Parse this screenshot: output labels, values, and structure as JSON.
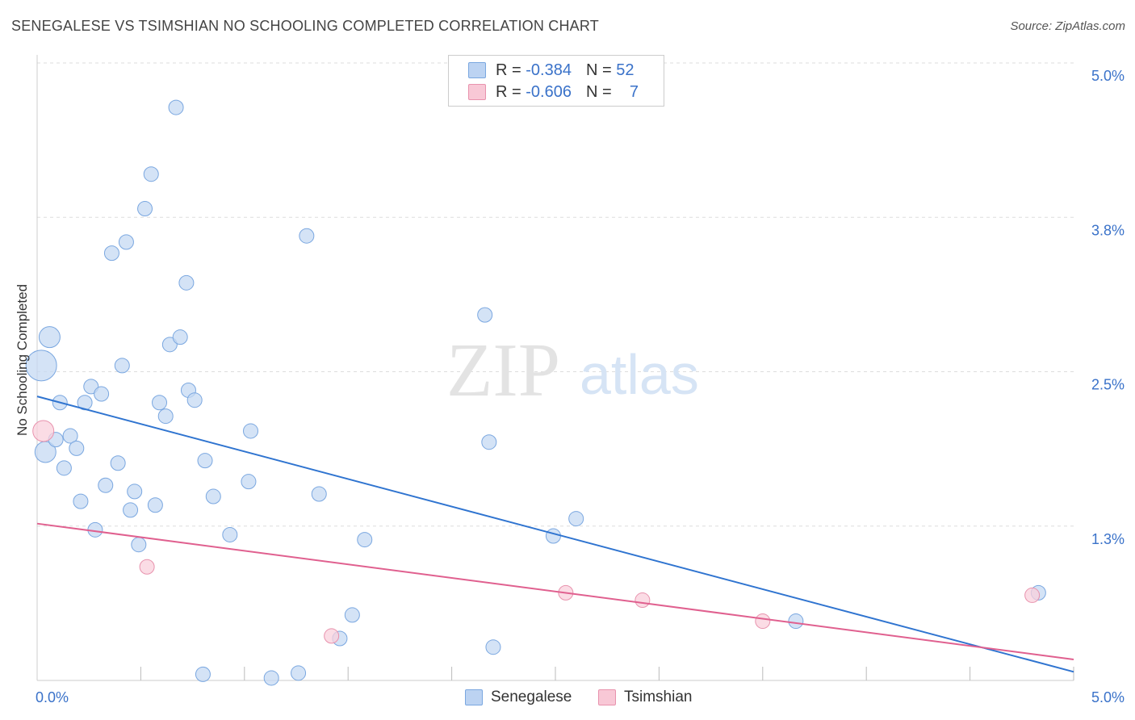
{
  "title": "SENEGALESE VS TSIMSHIAN NO SCHOOLING COMPLETED CORRELATION CHART",
  "source": "Source: ZipAtlas.com",
  "watermark": {
    "zip": "ZIP",
    "atlas": "atlas"
  },
  "stats": {
    "senegalese": {
      "r_label": "R =",
      "r_value": "-0.384",
      "n_label": "N =",
      "n_value": "52"
    },
    "tsimshian": {
      "r_label": "R =",
      "r_value": "-0.606",
      "n_label": "N =",
      "n_value": "7"
    }
  },
  "legend": {
    "senegalese": "Senegalese",
    "tsimshian": "Tsimshian"
  },
  "colors": {
    "blue_fill": "#c5daf3",
    "blue_stroke": "#7aa7e0",
    "blue_line": "#2f74d0",
    "pink_fill": "#f9d0dc",
    "pink_stroke": "#e892ad",
    "pink_line": "#e0608f",
    "tick_label": "#3a72c9",
    "grid": "#dddddd"
  },
  "chart_data": {
    "type": "scatter",
    "title": "SENEGALESE VS TSIMSHIAN NO SCHOOLING COMPLETED CORRELATION CHART",
    "xlabel": "",
    "ylabel": "No Schooling Completed",
    "xlim": [
      0.0,
      5.0
    ],
    "ylim": [
      0.0,
      5.0
    ],
    "x_tick_labels": [
      {
        "value": 0.0,
        "label": "0.0%"
      },
      {
        "value": 5.0,
        "label": "5.0%"
      }
    ],
    "y_ticks": [
      {
        "value": 1.25,
        "label": "1.3%"
      },
      {
        "value": 2.5,
        "label": "2.5%"
      },
      {
        "value": 3.75,
        "label": "3.8%"
      },
      {
        "value": 5.0,
        "label": "5.0%"
      }
    ],
    "series": [
      {
        "name": "Senegalese",
        "points": [
          {
            "x": 0.02,
            "y": 2.55,
            "s": 3
          },
          {
            "x": 0.06,
            "y": 2.78,
            "s": 2
          },
          {
            "x": 0.04,
            "y": 1.85,
            "s": 2
          },
          {
            "x": 0.09,
            "y": 1.95,
            "s": 1
          },
          {
            "x": 0.11,
            "y": 2.25,
            "s": 1
          },
          {
            "x": 0.13,
            "y": 1.72,
            "s": 1
          },
          {
            "x": 0.16,
            "y": 1.98,
            "s": 1
          },
          {
            "x": 0.19,
            "y": 1.88,
            "s": 1
          },
          {
            "x": 0.21,
            "y": 1.45,
            "s": 1
          },
          {
            "x": 0.23,
            "y": 2.25,
            "s": 1
          },
          {
            "x": 0.26,
            "y": 2.38,
            "s": 1
          },
          {
            "x": 0.28,
            "y": 1.22,
            "s": 1
          },
          {
            "x": 0.31,
            "y": 2.32,
            "s": 1
          },
          {
            "x": 0.33,
            "y": 1.58,
            "s": 1
          },
          {
            "x": 0.36,
            "y": 3.46,
            "s": 1
          },
          {
            "x": 0.39,
            "y": 1.76,
            "s": 1
          },
          {
            "x": 0.41,
            "y": 2.55,
            "s": 1
          },
          {
            "x": 0.43,
            "y": 3.55,
            "s": 1
          },
          {
            "x": 0.45,
            "y": 1.38,
            "s": 1
          },
          {
            "x": 0.47,
            "y": 1.53,
            "s": 1
          },
          {
            "x": 0.49,
            "y": 1.1,
            "s": 1
          },
          {
            "x": 0.52,
            "y": 3.82,
            "s": 1
          },
          {
            "x": 0.55,
            "y": 4.1,
            "s": 1
          },
          {
            "x": 0.57,
            "y": 1.42,
            "s": 1
          },
          {
            "x": 0.59,
            "y": 2.25,
            "s": 1
          },
          {
            "x": 0.62,
            "y": 2.14,
            "s": 1
          },
          {
            "x": 0.64,
            "y": 2.72,
            "s": 1
          },
          {
            "x": 0.67,
            "y": 4.64,
            "s": 1
          },
          {
            "x": 0.69,
            "y": 2.78,
            "s": 1
          },
          {
            "x": 0.72,
            "y": 3.22,
            "s": 1
          },
          {
            "x": 0.73,
            "y": 2.35,
            "s": 1
          },
          {
            "x": 0.76,
            "y": 2.27,
            "s": 1
          },
          {
            "x": 0.8,
            "y": 0.05,
            "s": 1
          },
          {
            "x": 0.81,
            "y": 1.78,
            "s": 1
          },
          {
            "x": 0.85,
            "y": 1.49,
            "s": 1
          },
          {
            "x": 0.93,
            "y": 1.18,
            "s": 1
          },
          {
            "x": 1.02,
            "y": 1.61,
            "s": 1
          },
          {
            "x": 1.03,
            "y": 2.02,
            "s": 1
          },
          {
            "x": 1.13,
            "y": 0.02,
            "s": 1
          },
          {
            "x": 1.26,
            "y": 0.06,
            "s": 1
          },
          {
            "x": 1.3,
            "y": 3.6,
            "s": 1
          },
          {
            "x": 1.36,
            "y": 1.51,
            "s": 1
          },
          {
            "x": 1.46,
            "y": 0.34,
            "s": 1
          },
          {
            "x": 1.52,
            "y": 0.53,
            "s": 1
          },
          {
            "x": 1.58,
            "y": 1.14,
            "s": 1
          },
          {
            "x": 2.16,
            "y": 2.96,
            "s": 1
          },
          {
            "x": 2.18,
            "y": 1.93,
            "s": 1
          },
          {
            "x": 2.2,
            "y": 0.27,
            "s": 1
          },
          {
            "x": 2.49,
            "y": 1.17,
            "s": 1
          },
          {
            "x": 2.6,
            "y": 1.31,
            "s": 1
          },
          {
            "x": 3.66,
            "y": 0.48,
            "s": 1
          },
          {
            "x": 4.83,
            "y": 0.71,
            "s": 1
          }
        ],
        "trend": {
          "x0": 0.0,
          "y0": 2.3,
          "x1": 5.0,
          "y1": 0.07
        }
      },
      {
        "name": "Tsimshian",
        "points": [
          {
            "x": 0.03,
            "y": 2.02,
            "s": 2
          },
          {
            "x": 0.53,
            "y": 0.92,
            "s": 1
          },
          {
            "x": 1.42,
            "y": 0.36,
            "s": 1
          },
          {
            "x": 2.55,
            "y": 0.71,
            "s": 1
          },
          {
            "x": 2.92,
            "y": 0.65,
            "s": 1
          },
          {
            "x": 3.5,
            "y": 0.48,
            "s": 1
          },
          {
            "x": 4.8,
            "y": 0.69,
            "s": 1
          }
        ],
        "trend": {
          "x0": 0.0,
          "y0": 1.27,
          "x1": 5.0,
          "y1": 0.17
        }
      }
    ]
  }
}
